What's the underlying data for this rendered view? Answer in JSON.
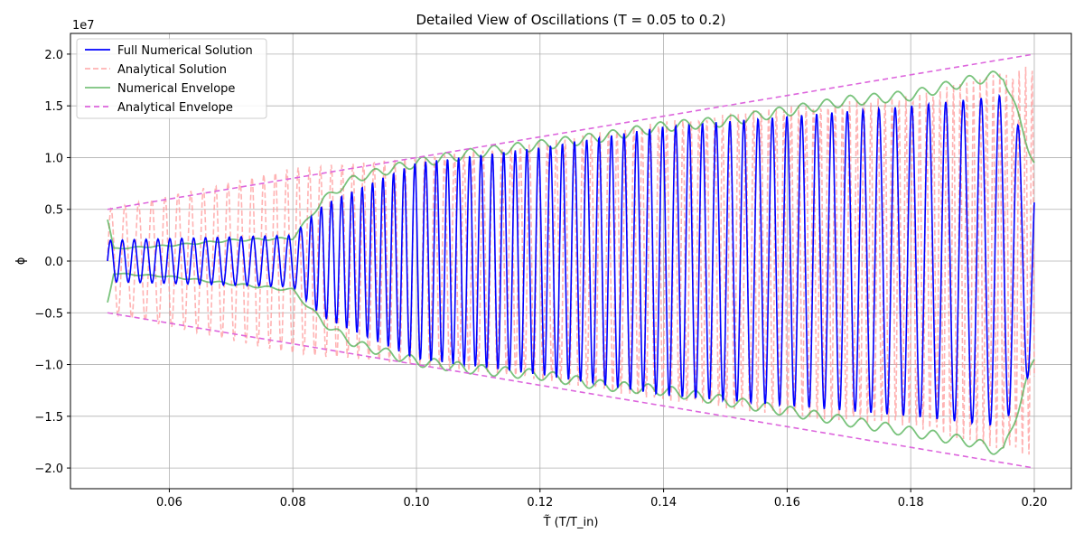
{
  "chart_data": {
    "type": "line",
    "title": "Detailed View of Oscillations (T = 0.05 to 0.2)",
    "xlabel": "T̃ (T/T_in)",
    "ylabel": "ϕ",
    "y_scale_label": "1e7",
    "xlim": [
      0.044,
      0.206
    ],
    "ylim": [
      -2.2,
      2.2
    ],
    "x_ticks": [
      0.06,
      0.08,
      0.1,
      0.12,
      0.14,
      0.16,
      0.18,
      0.2
    ],
    "x_tick_labels": [
      "0.06",
      "0.08",
      "0.10",
      "0.12",
      "0.14",
      "0.16",
      "0.18",
      "0.20"
    ],
    "y_ticks": [
      -2.0,
      -1.5,
      -1.0,
      -0.5,
      0.0,
      0.5,
      1.0,
      1.5,
      2.0
    ],
    "y_tick_labels": [
      "−2.0",
      "−1.5",
      "−1.0",
      "−0.5",
      "0.0",
      "0.5",
      "1.0",
      "1.5",
      "2.0"
    ],
    "grid": true,
    "legend_position": "top-left",
    "x_range": [
      0.05,
      0.2
    ],
    "series": [
      {
        "name": "Full Numerical Solution",
        "color": "#0000ff",
        "style": "solid",
        "description_points": {
          "amplitude_at": [
            [
              0.05,
              0.2
            ],
            [
              0.08,
              0.25
            ],
            [
              0.085,
              0.55
            ],
            [
              0.1,
              0.95
            ],
            [
              0.12,
              1.1
            ],
            [
              0.14,
              1.3
            ],
            [
              0.16,
              1.4
            ],
            [
              0.18,
              1.5
            ],
            [
              0.195,
              1.6
            ],
            [
              0.2,
              1.0
            ]
          ]
        }
      },
      {
        "name": "Analytical Solution",
        "color": "#ff9999",
        "style": "dashed",
        "description_points": {
          "amplitude_at": [
            [
              0.05,
              0.5
            ],
            [
              0.08,
              0.9
            ],
            [
              0.1,
              1.0
            ],
            [
              0.12,
              1.15
            ],
            [
              0.14,
              1.35
            ],
            [
              0.16,
              1.5
            ],
            [
              0.18,
              1.6
            ],
            [
              0.2,
              1.9
            ]
          ]
        }
      },
      {
        "name": "Numerical Envelope",
        "color": "#4caf50",
        "style": "solid",
        "upper": [
          [
            0.05,
            0.4
          ],
          [
            0.051,
            0.12
          ],
          [
            0.06,
            0.15
          ],
          [
            0.07,
            0.2
          ],
          [
            0.08,
            0.22
          ],
          [
            0.085,
            0.6
          ],
          [
            0.09,
            0.8
          ],
          [
            0.1,
            0.95
          ],
          [
            0.11,
            1.05
          ],
          [
            0.12,
            1.12
          ],
          [
            0.13,
            1.2
          ],
          [
            0.14,
            1.3
          ],
          [
            0.15,
            1.35
          ],
          [
            0.16,
            1.45
          ],
          [
            0.17,
            1.55
          ],
          [
            0.18,
            1.6
          ],
          [
            0.19,
            1.75
          ],
          [
            0.195,
            1.8
          ],
          [
            0.2,
            0.95
          ]
        ],
        "lower": [
          [
            0.05,
            -0.4
          ],
          [
            0.051,
            -0.12
          ],
          [
            0.06,
            -0.15
          ],
          [
            0.07,
            -0.22
          ],
          [
            0.08,
            -0.28
          ],
          [
            0.085,
            -0.6
          ],
          [
            0.09,
            -0.8
          ],
          [
            0.1,
            -0.97
          ],
          [
            0.11,
            -1.05
          ],
          [
            0.12,
            -1.1
          ],
          [
            0.13,
            -1.2
          ],
          [
            0.14,
            -1.25
          ],
          [
            0.15,
            -1.35
          ],
          [
            0.16,
            -1.45
          ],
          [
            0.17,
            -1.55
          ],
          [
            0.18,
            -1.65
          ],
          [
            0.19,
            -1.75
          ],
          [
            0.195,
            -1.85
          ],
          [
            0.2,
            -0.95
          ]
        ]
      },
      {
        "name": "Analytical Envelope",
        "color": "#dd66dd",
        "style": "dashed",
        "upper": [
          [
            0.05,
            0.5
          ],
          [
            0.2,
            2.0
          ]
        ],
        "lower": [
          [
            0.05,
            -0.5
          ],
          [
            0.2,
            -2.0
          ]
        ]
      }
    ]
  }
}
